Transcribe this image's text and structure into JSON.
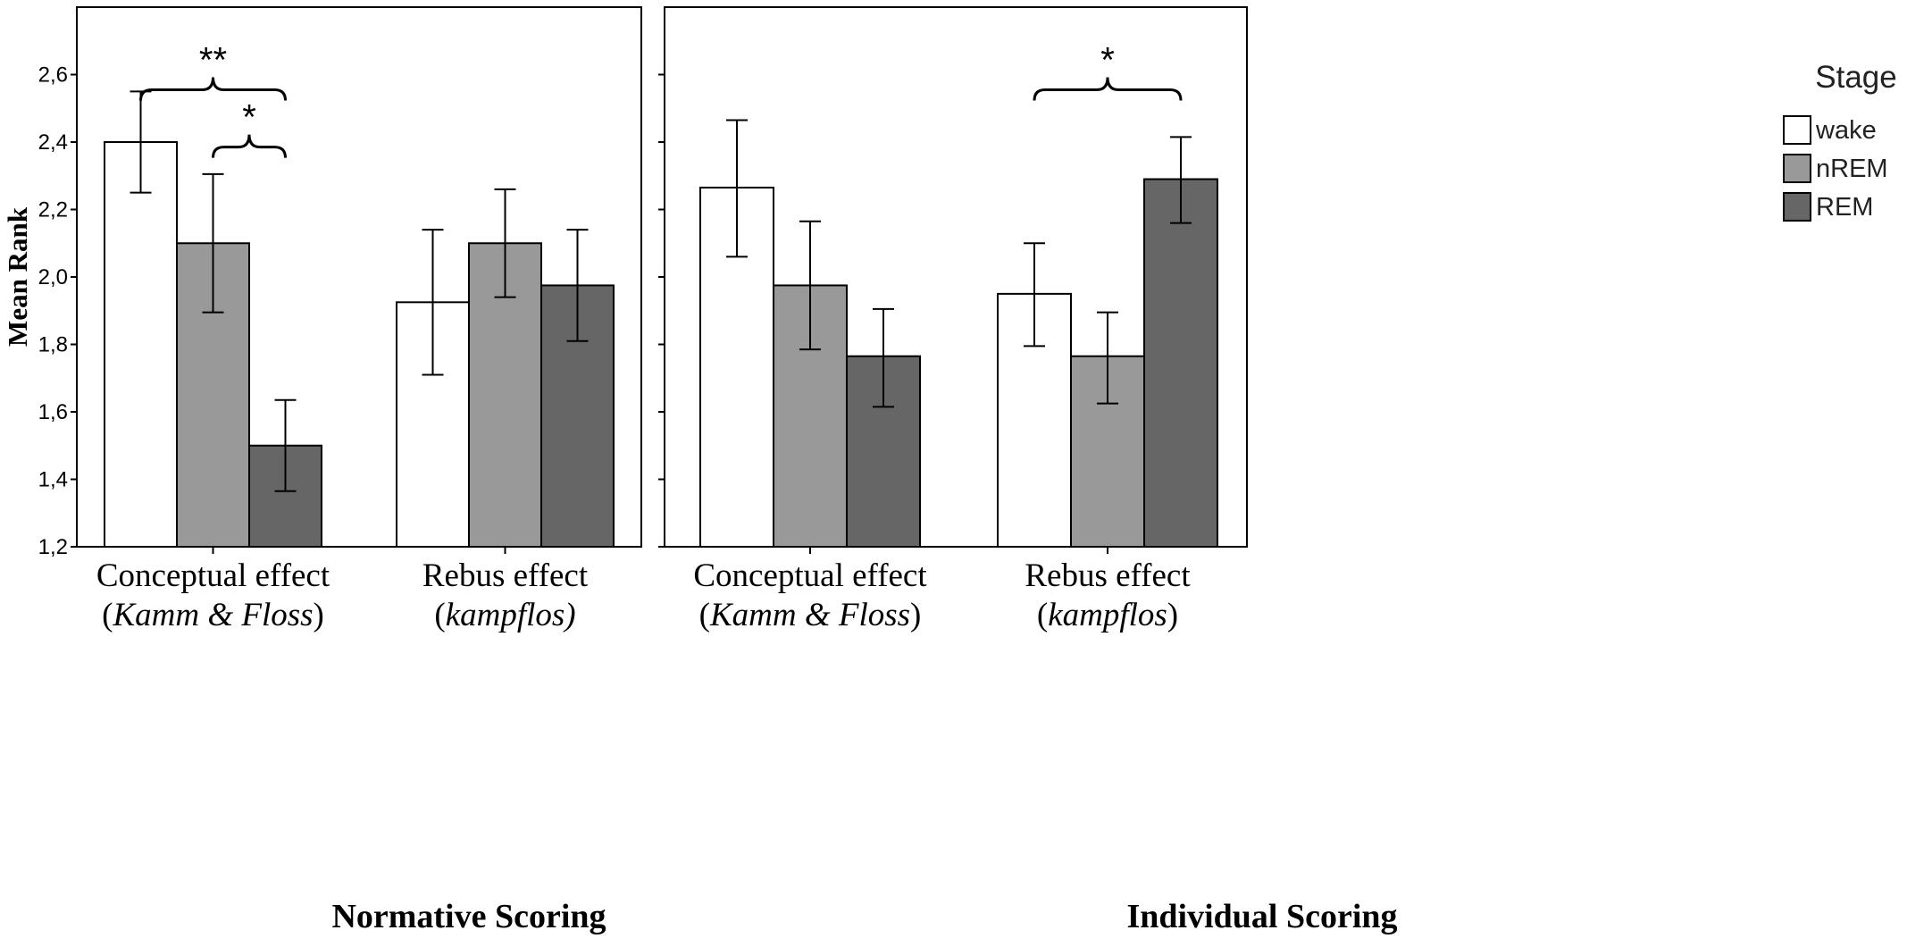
{
  "chart_data": {
    "type": "bar",
    "ylabel": "Mean Rank",
    "ylim": [
      1.2,
      2.8
    ],
    "yticks": [
      "1,2",
      "1,4",
      "1,6",
      "1,8",
      "2,0",
      "2,2",
      "2,4",
      "2,6"
    ],
    "yticks_values": [
      1.2,
      1.4,
      1.6,
      1.8,
      2.0,
      2.2,
      2.4,
      2.6
    ],
    "legend": {
      "title": "Stage",
      "entries": [
        {
          "name": "wake",
          "color": "#ffffff"
        },
        {
          "name": "nREM",
          "color": "#999999"
        },
        {
          "name": "REM",
          "color": "#666666"
        }
      ]
    },
    "panels": [
      {
        "title": "Normative Scoring",
        "groups": [
          {
            "label_line1": "Conceptual effect",
            "label_line2_open": "(",
            "label_line2_italic": "Kamm & Floss",
            "label_line2_close": ")",
            "bars": [
              {
                "stage": "wake",
                "value": 2.4,
                "err_low": 2.25,
                "err_high": 2.55
              },
              {
                "stage": "nREM",
                "value": 2.1,
                "err_low": 1.895,
                "err_high": 2.305
              },
              {
                "stage": "REM",
                "value": 1.5,
                "err_low": 1.365,
                "err_high": 1.635
              }
            ]
          },
          {
            "label_line1": "Rebus effect",
            "label_line2_open": "(",
            "label_line2_italic": "kampflos)",
            "label_line2_close": "",
            "bars": [
              {
                "stage": "wake",
                "value": 1.925,
                "err_low": 1.71,
                "err_high": 2.14
              },
              {
                "stage": "nREM",
                "value": 2.1,
                "err_low": 1.94,
                "err_high": 2.26
              },
              {
                "stage": "REM",
                "value": 1.975,
                "err_low": 1.81,
                "err_high": 2.14
              }
            ]
          }
        ],
        "annotations": [
          {
            "text": "**",
            "from_group": 0,
            "from_bar": 0,
            "to_group": 0,
            "to_bar": 2,
            "level": 2.555
          },
          {
            "text": "*",
            "from_group": 0,
            "from_bar": 1,
            "to_group": 0,
            "to_bar": 2,
            "level": 2.385
          }
        ]
      },
      {
        "title": "Individual Scoring",
        "groups": [
          {
            "label_line1": "Conceptual effect",
            "label_line2_open": "(",
            "label_line2_italic": "Kamm & Floss",
            "label_line2_close": ")",
            "bars": [
              {
                "stage": "wake",
                "value": 2.265,
                "err_low": 2.06,
                "err_high": 2.465
              },
              {
                "stage": "nREM",
                "value": 1.975,
                "err_low": 1.785,
                "err_high": 2.165
              },
              {
                "stage": "REM",
                "value": 1.765,
                "err_low": 1.615,
                "err_high": 1.905
              }
            ]
          },
          {
            "label_line1": "Rebus effect",
            "label_line2_open": "(",
            "label_line2_italic": "kampflos",
            "label_line2_close": ")",
            "bars": [
              {
                "stage": "wake",
                "value": 1.95,
                "err_low": 1.795,
                "err_high": 2.1
              },
              {
                "stage": "nREM",
                "value": 1.765,
                "err_low": 1.625,
                "err_high": 1.895
              },
              {
                "stage": "REM",
                "value": 2.29,
                "err_low": 2.16,
                "err_high": 2.415
              }
            ]
          }
        ],
        "annotations": [
          {
            "text": "*",
            "from_group": 1,
            "from_bar": 0,
            "to_group": 1,
            "to_bar": 2,
            "level": 2.555
          }
        ]
      }
    ]
  }
}
